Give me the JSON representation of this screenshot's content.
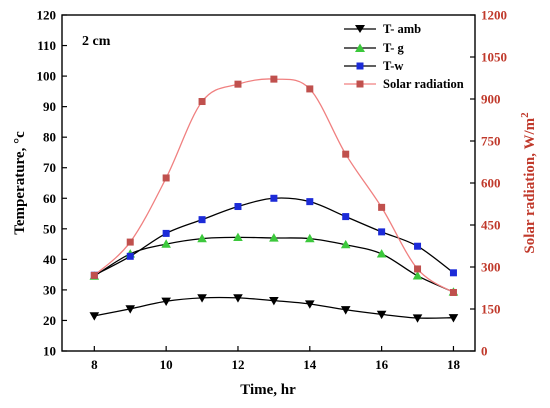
{
  "chart_data": {
    "type": "line",
    "annotation": "2 cm",
    "xlabel": "Time, hr",
    "ylabel_left": "Temperature, °c",
    "ylabel_right_main": "Solar radiation, W/m",
    "ylabel_right_sup": "2",
    "xlim": [
      7.1,
      18.6
    ],
    "ylim_left": [
      10,
      120
    ],
    "ylim_right": [
      0,
      1200
    ],
    "xticks": [
      8,
      10,
      12,
      14,
      16,
      18
    ],
    "yticks_left": [
      10,
      20,
      30,
      40,
      50,
      60,
      70,
      80,
      90,
      100,
      110,
      120
    ],
    "yticks_right": [
      0,
      150,
      300,
      450,
      600,
      750,
      900,
      1050,
      1200
    ],
    "legend_position": "top-right",
    "right_axis_color": "#c0392b",
    "series": [
      {
        "name": "T- amb",
        "axis": "left",
        "marker": "triangle-down",
        "color": "#000000",
        "line_color": "#000000",
        "x": [
          8,
          9,
          10,
          11,
          12,
          13,
          14,
          15,
          16,
          17,
          18
        ],
        "y": [
          21.5,
          23.8,
          26.3,
          27.4,
          27.4,
          26.5,
          25.4,
          23.5,
          22,
          20.8,
          20.9
        ]
      },
      {
        "name": "T- g",
        "axis": "left",
        "marker": "triangle-up",
        "color": "#3cc83c",
        "line_color": "#000000",
        "x": [
          8,
          9,
          10,
          11,
          12,
          13,
          14,
          15,
          16,
          17,
          18
        ],
        "y": [
          34.5,
          41.8,
          45,
          46.8,
          47.2,
          47,
          46.8,
          44.8,
          41.8,
          34.6,
          29.3
        ]
      },
      {
        "name": "T-w",
        "axis": "left",
        "marker": "square",
        "color": "#1c2bd8",
        "line_color": "#000000",
        "x": [
          8,
          9,
          10,
          11,
          12,
          13,
          14,
          15,
          16,
          17,
          18
        ],
        "y": [
          34.8,
          41,
          48.5,
          53,
          57.3,
          60,
          58.9,
          54,
          49,
          44.3,
          35.6
        ]
      },
      {
        "name": "Solar radiation",
        "axis": "right",
        "marker": "square",
        "color": "#c0504d",
        "line_color": "#f08080",
        "x": [
          8,
          9,
          10,
          11,
          12,
          13,
          14,
          15,
          16,
          17,
          18
        ],
        "y": [
          270,
          389,
          618,
          891,
          953,
          971,
          936,
          703,
          513,
          293,
          209
        ]
      }
    ]
  }
}
